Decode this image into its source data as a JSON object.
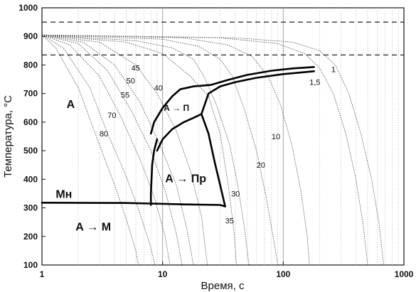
{
  "chart_data": {
    "type": "line",
    "title": "",
    "xlabel": "Время, с",
    "ylabel": "Температура, °C",
    "x_scale": "log",
    "xlim": [
      1,
      1000
    ],
    "ylim": [
      100,
      1000
    ],
    "x_ticks": [
      "1",
      "10",
      "100",
      "1000"
    ],
    "y_ticks": [
      "100",
      "200",
      "300",
      "400",
      "500",
      "600",
      "700",
      "800",
      "900",
      "1000"
    ],
    "grid": true,
    "reference_lines": [
      {
        "style": "dashed",
        "y": 950
      },
      {
        "style": "dashed",
        "y": 835
      }
    ],
    "cooling_curves": [
      {
        "label": "80",
        "points": [
          [
            1,
            905
          ],
          [
            1.3,
            860
          ],
          [
            2,
            720
          ],
          [
            3,
            520
          ],
          [
            4,
            380
          ],
          [
            5,
            260
          ],
          [
            6,
            150
          ],
          [
            6.3,
            100
          ]
        ]
      },
      {
        "label": "70",
        "points": [
          [
            1,
            905
          ],
          [
            1.5,
            860
          ],
          [
            2.5,
            720
          ],
          [
            3.5,
            560
          ],
          [
            5,
            410
          ],
          [
            6.5,
            280
          ],
          [
            8,
            160
          ],
          [
            8.6,
            100
          ]
        ]
      },
      {
        "label": "55",
        "points": [
          [
            1,
            905
          ],
          [
            1.7,
            870
          ],
          [
            3,
            760
          ],
          [
            4.5,
            620
          ],
          [
            6.5,
            470
          ],
          [
            8.5,
            340
          ],
          [
            10.5,
            200
          ],
          [
            11.5,
            100
          ]
        ]
      },
      {
        "label": "50",
        "points": [
          [
            1,
            905
          ],
          [
            2,
            875
          ],
          [
            3.5,
            780
          ],
          [
            5.5,
            640
          ],
          [
            8,
            500
          ],
          [
            10.5,
            360
          ],
          [
            13,
            210
          ],
          [
            14.5,
            100
          ]
        ]
      },
      {
        "label": "45",
        "points": [
          [
            1,
            905
          ],
          [
            2.2,
            880
          ],
          [
            4,
            800
          ],
          [
            6.5,
            670
          ],
          [
            9.5,
            520
          ],
          [
            13,
            380
          ],
          [
            16,
            220
          ],
          [
            18,
            100
          ]
        ]
      },
      {
        "label": "40",
        "points": [
          [
            1,
            905
          ],
          [
            3,
            880
          ],
          [
            6,
            800
          ],
          [
            9,
            700
          ],
          [
            13,
            570
          ],
          [
            17,
            430
          ],
          [
            21,
            270
          ],
          [
            23.5,
            100
          ]
        ]
      },
      {
        "label": "35",
        "points": [
          [
            1,
            905
          ],
          [
            5,
            880
          ],
          [
            10,
            840
          ],
          [
            17,
            760
          ],
          [
            24,
            690
          ],
          [
            30,
            560
          ],
          [
            35,
            380
          ],
          [
            39,
            220
          ],
          [
            41,
            100
          ]
        ]
      },
      {
        "label": "30",
        "points": [
          [
            1,
            905
          ],
          [
            6,
            885
          ],
          [
            12,
            860
          ],
          [
            18,
            820
          ],
          [
            22,
            760
          ],
          [
            28,
            660
          ],
          [
            36,
            520
          ],
          [
            42,
            380
          ],
          [
            48,
            220
          ],
          [
            52,
            100
          ]
        ]
      },
      {
        "label": "20",
        "points": [
          [
            1,
            905
          ],
          [
            10,
            890
          ],
          [
            20,
            865
          ],
          [
            30,
            820
          ],
          [
            38,
            760
          ],
          [
            48,
            640
          ],
          [
            60,
            500
          ],
          [
            72,
            340
          ],
          [
            84,
            180
          ],
          [
            90,
            100
          ]
        ]
      },
      {
        "label": "10",
        "points": [
          [
            1,
            905
          ],
          [
            15,
            895
          ],
          [
            35,
            870
          ],
          [
            55,
            830
          ],
          [
            75,
            760
          ],
          [
            95,
            660
          ],
          [
            118,
            520
          ],
          [
            140,
            360
          ],
          [
            158,
            200
          ],
          [
            165,
            100
          ]
        ]
      },
      {
        "label": "1,5",
        "points": [
          [
            1,
            905
          ],
          [
            30,
            895
          ],
          [
            90,
            875
          ],
          [
            150,
            840
          ],
          [
            200,
            790
          ],
          [
            260,
            700
          ],
          [
            330,
            560
          ],
          [
            400,
            400
          ],
          [
            460,
            240
          ],
          [
            500,
            100
          ]
        ]
      },
      {
        "label": "1",
        "points": [
          [
            1,
            905
          ],
          [
            40,
            895
          ],
          [
            120,
            880
          ],
          [
            200,
            850
          ],
          [
            270,
            800
          ],
          [
            350,
            700
          ],
          [
            440,
            560
          ],
          [
            540,
            400
          ],
          [
            620,
            250
          ],
          [
            680,
            100
          ]
        ]
      }
    ],
    "transformation_boundaries": [
      {
        "name": "pearlite_start",
        "points": [
          [
            8,
            560
          ],
          [
            8.5,
            600
          ],
          [
            10,
            650
          ],
          [
            12,
            690
          ],
          [
            14,
            715
          ],
          [
            18,
            725
          ],
          [
            25,
            730
          ],
          [
            35,
            748
          ],
          [
            50,
            765
          ],
          [
            80,
            780
          ],
          [
            120,
            788
          ],
          [
            180,
            793
          ]
        ]
      },
      {
        "name": "pearlite_finish",
        "points": [
          [
            9,
            500
          ],
          [
            10,
            540
          ],
          [
            12,
            575
          ],
          [
            15,
            600
          ],
          [
            18,
            615
          ],
          [
            21,
            628
          ],
          [
            24,
            700
          ],
          [
            30,
            725
          ],
          [
            40,
            740
          ],
          [
            60,
            755
          ],
          [
            100,
            768
          ],
          [
            180,
            778
          ]
        ]
      },
      {
        "name": "bainite_start",
        "points": [
          [
            8,
            310
          ],
          [
            8,
            350
          ],
          [
            8.2,
            450
          ],
          [
            8.5,
            500
          ],
          [
            9,
            540
          ]
        ]
      },
      {
        "name": "bainite_finish",
        "points": [
          [
            21,
            628
          ],
          [
            24,
            560
          ],
          [
            27,
            460
          ],
          [
            30,
            380
          ],
          [
            33,
            305
          ]
        ]
      },
      {
        "name": "Ms",
        "points": [
          [
            1,
            318
          ],
          [
            5,
            317
          ],
          [
            8,
            315
          ],
          [
            15,
            312
          ],
          [
            30,
            310
          ],
          [
            33,
            305
          ]
        ]
      }
    ],
    "curve_label_positions": [
      {
        "label": "45",
        "x": 5.5,
        "y": 780
      },
      {
        "label": "50",
        "x": 5.0,
        "y": 735
      },
      {
        "label": "55",
        "x": 4.5,
        "y": 685
      },
      {
        "label": "70",
        "x": 3.5,
        "y": 615
      },
      {
        "label": "80",
        "x": 3.0,
        "y": 550
      },
      {
        "label": "40",
        "x": 8.5,
        "y": 710
      },
      {
        "label": "10",
        "x": 80,
        "y": 540
      },
      {
        "label": "20",
        "x": 60,
        "y": 440
      },
      {
        "label": "30",
        "x": 37,
        "y": 340
      },
      {
        "label": "35",
        "x": 33,
        "y": 245
      },
      {
        "label": "1,5",
        "x": 165,
        "y": 730
      },
      {
        "label": "1",
        "x": 250,
        "y": 775
      }
    ],
    "region_labels": [
      {
        "text": "A",
        "x": 1.6,
        "y": 650,
        "size": "large"
      },
      {
        "text": "А → П",
        "x": 10.2,
        "y": 640,
        "size": "small"
      },
      {
        "text": "А → Пр",
        "x": 10.5,
        "y": 390,
        "size": "large"
      },
      {
        "text": "Мн",
        "x": 1.3,
        "y": 335,
        "size": "large"
      },
      {
        "text": "А → М",
        "x": 1.9,
        "y": 220,
        "size": "large"
      }
    ]
  }
}
